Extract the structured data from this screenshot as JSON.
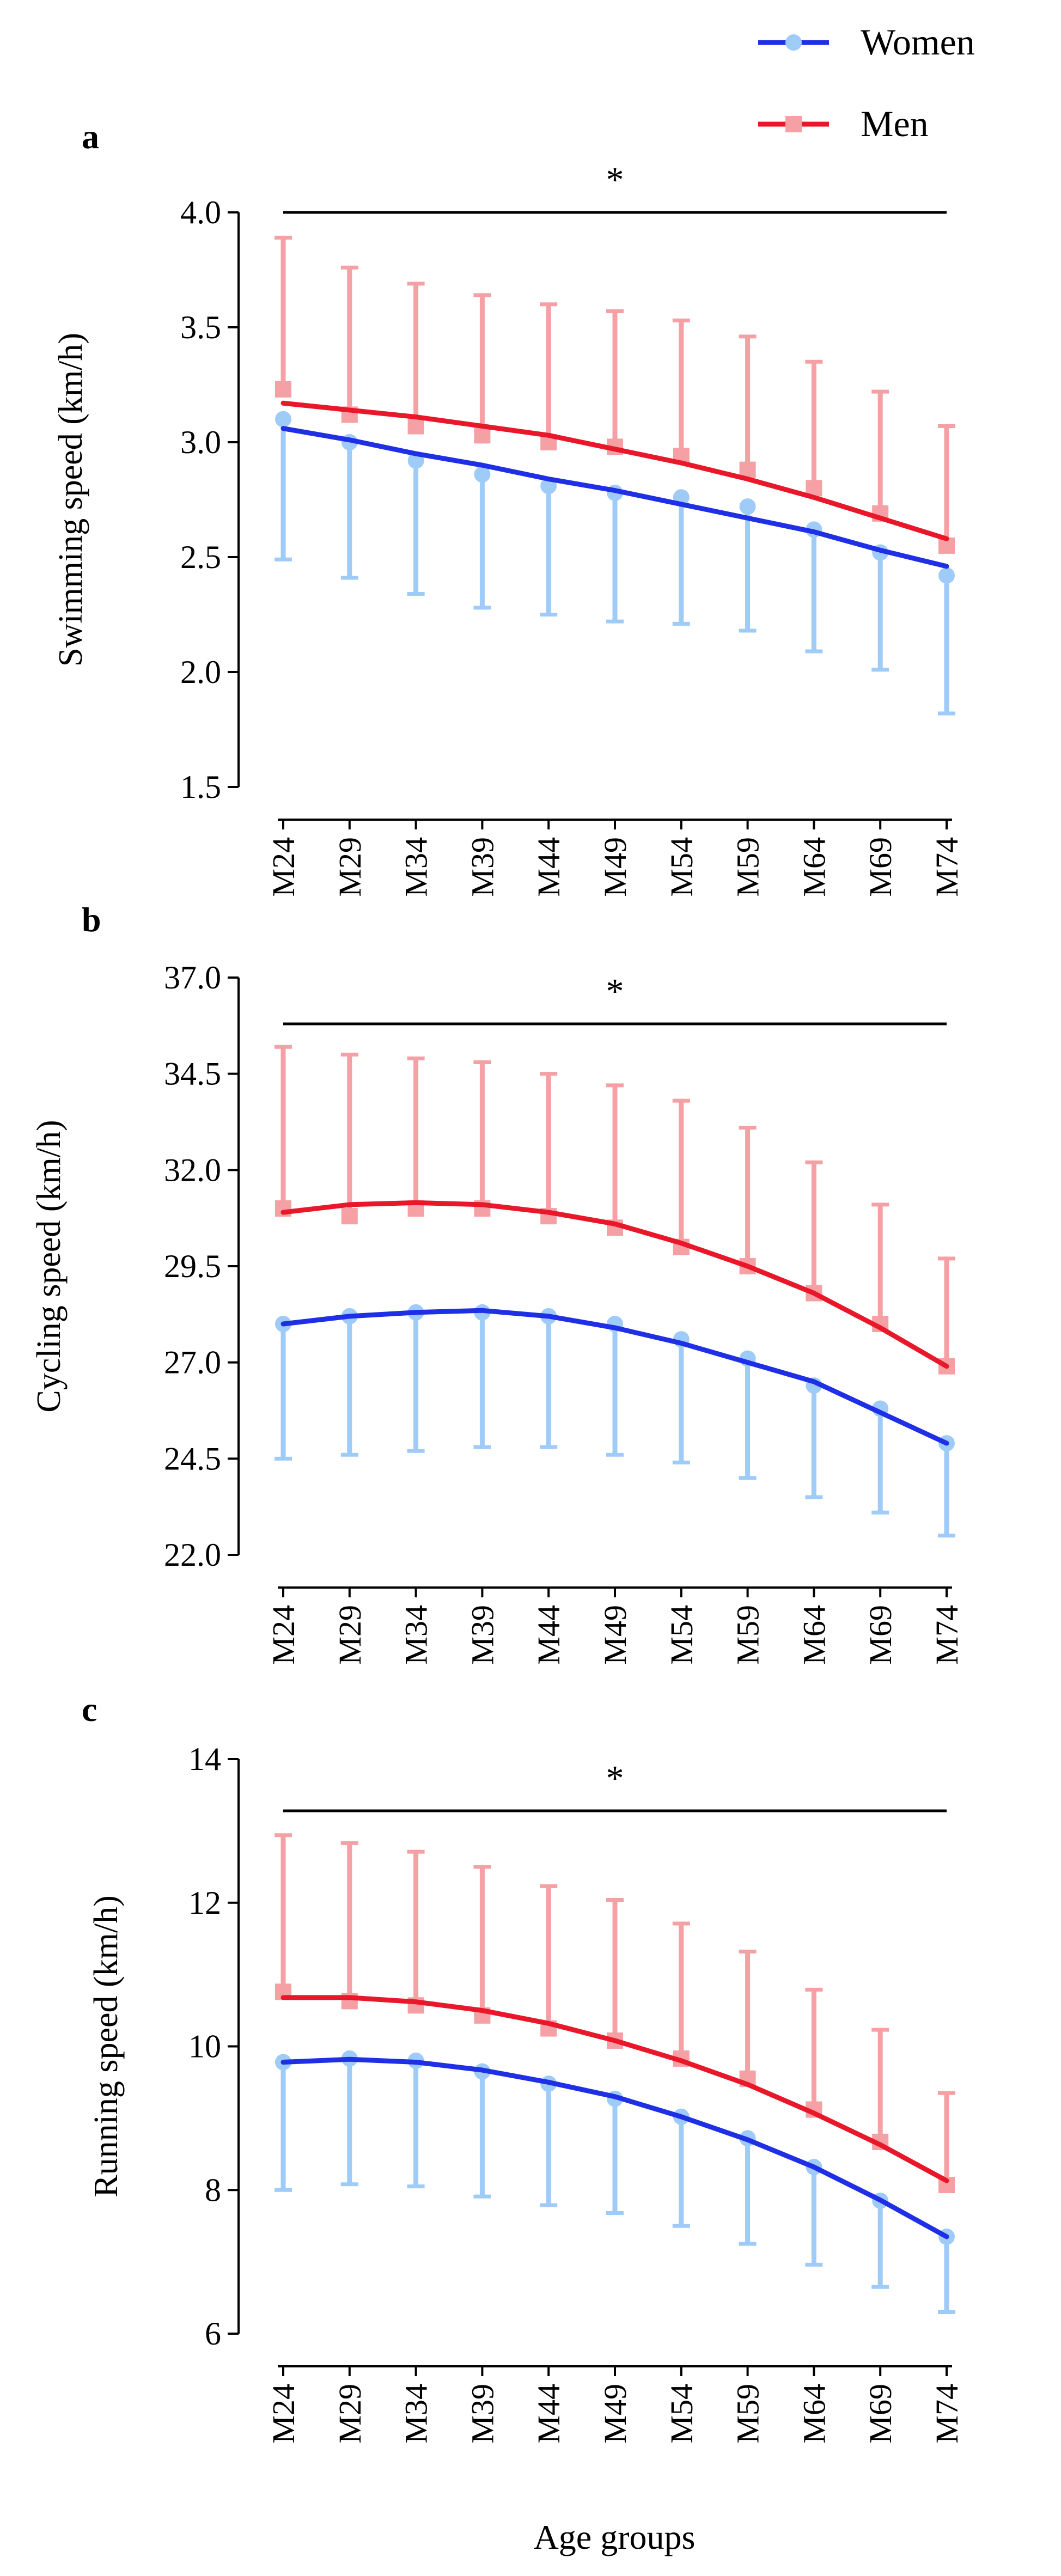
{
  "figure": {
    "xlabel": "Age groups",
    "legend": {
      "placement": "top-right",
      "entries": [
        {
          "label": "Women",
          "marker": "circle",
          "series": "women"
        },
        {
          "label": "Men",
          "marker": "square",
          "series": "men"
        }
      ]
    },
    "colors": {
      "women_line": "#1f2fe6",
      "women_marker": "#9ecbf7",
      "men_line": "#e8182a",
      "men_marker": "#f4a0a4",
      "axis": "#000000"
    }
  },
  "chart_data": [
    {
      "panel": "a",
      "type": "line",
      "title": "",
      "ylabel": "Swimming speed (km/h)",
      "xlabel": "",
      "categories": [
        "M24",
        "M29",
        "M34",
        "M39",
        "M44",
        "M49",
        "M54",
        "M59",
        "M64",
        "M69",
        "M74"
      ],
      "ylim": [
        1.5,
        4.0
      ],
      "yticks": [
        1.5,
        2.0,
        2.5,
        3.0,
        3.5,
        4.0
      ],
      "ytick_labels": [
        "1.5",
        "2.0",
        "2.5",
        "3.0",
        "3.5",
        "4.0"
      ],
      "significance": {
        "symbol": "*",
        "y": 4.0,
        "from": "M24",
        "to": "M74"
      },
      "series": [
        {
          "name": "Women",
          "means": [
            3.1,
            3.0,
            2.92,
            2.86,
            2.81,
            2.78,
            2.76,
            2.72,
            2.62,
            2.52,
            2.42
          ],
          "error_lower": [
            2.49,
            2.41,
            2.34,
            2.28,
            2.25,
            2.22,
            2.21,
            2.18,
            2.09,
            2.01,
            1.82
          ],
          "error_upper": [
            3.1,
            3.0,
            2.92,
            2.86,
            2.81,
            2.78,
            2.76,
            2.72,
            2.62,
            2.52,
            2.42
          ],
          "trend": [
            3.06,
            3.01,
            2.95,
            2.9,
            2.84,
            2.79,
            2.73,
            2.67,
            2.61,
            2.53,
            2.46
          ]
        },
        {
          "name": "Men",
          "means": [
            3.23,
            3.12,
            3.07,
            3.03,
            3.0,
            2.98,
            2.94,
            2.88,
            2.8,
            2.69,
            2.55
          ],
          "error_lower": [
            3.23,
            3.12,
            3.07,
            3.03,
            3.0,
            2.98,
            2.94,
            2.88,
            2.8,
            2.69,
            2.55
          ],
          "error_upper": [
            3.89,
            3.76,
            3.69,
            3.64,
            3.6,
            3.57,
            3.53,
            3.46,
            3.35,
            3.22,
            3.07
          ],
          "trend": [
            3.17,
            3.14,
            3.11,
            3.07,
            3.03,
            2.97,
            2.91,
            2.84,
            2.76,
            2.67,
            2.58
          ]
        }
      ]
    },
    {
      "panel": "b",
      "type": "line",
      "title": "",
      "ylabel": "Cycling speed (km/h)",
      "xlabel": "",
      "categories": [
        "M24",
        "M29",
        "M34",
        "M39",
        "M44",
        "M49",
        "M54",
        "M59",
        "M64",
        "M69",
        "M74"
      ],
      "ylim": [
        22.0,
        37.0
      ],
      "yticks": [
        22.0,
        24.5,
        27.0,
        29.5,
        32.0,
        34.5,
        37.0
      ],
      "ytick_labels": [
        "22.0",
        "24.5",
        "27.0",
        "29.5",
        "32.0",
        "34.5",
        "37.0"
      ],
      "significance": {
        "symbol": "*",
        "y": 35.8,
        "from": "M24",
        "to": "M74"
      },
      "series": [
        {
          "name": "Women",
          "means": [
            28.0,
            28.2,
            28.3,
            28.3,
            28.2,
            28.0,
            27.6,
            27.1,
            26.4,
            25.8,
            24.9
          ],
          "error_lower": [
            24.5,
            24.6,
            24.7,
            24.8,
            24.8,
            24.6,
            24.4,
            24.0,
            23.5,
            23.1,
            22.5
          ],
          "error_upper": [
            28.0,
            28.2,
            28.3,
            28.3,
            28.2,
            28.0,
            27.6,
            27.1,
            26.4,
            25.8,
            24.9
          ],
          "trend": [
            28.0,
            28.2,
            28.3,
            28.35,
            28.2,
            27.9,
            27.5,
            27.0,
            26.5,
            25.7,
            24.9
          ]
        },
        {
          "name": "Men",
          "means": [
            31.0,
            30.8,
            31.0,
            31.0,
            30.8,
            30.5,
            30.0,
            29.5,
            28.8,
            28.0,
            26.9
          ],
          "error_lower": [
            31.0,
            30.8,
            31.0,
            31.0,
            30.8,
            30.5,
            30.0,
            29.5,
            28.8,
            28.0,
            26.9
          ],
          "error_upper": [
            35.2,
            35.0,
            34.9,
            34.8,
            34.5,
            34.2,
            33.8,
            33.1,
            32.2,
            31.1,
            29.7
          ],
          "trend": [
            30.9,
            31.1,
            31.15,
            31.1,
            30.9,
            30.6,
            30.1,
            29.5,
            28.8,
            27.9,
            26.9
          ]
        }
      ]
    },
    {
      "panel": "c",
      "type": "line",
      "title": "",
      "ylabel": "Running speed (km/h)",
      "xlabel": "Age groups",
      "categories": [
        "M24",
        "M29",
        "M34",
        "M39",
        "M44",
        "M49",
        "M54",
        "M59",
        "M64",
        "M69",
        "M74"
      ],
      "ylim": [
        6,
        14
      ],
      "yticks": [
        6,
        8,
        10,
        12,
        14
      ],
      "ytick_labels": [
        "6",
        "8",
        "10",
        "12",
        "14"
      ],
      "significance": {
        "symbol": "*",
        "y": 13.25,
        "from": "M24",
        "to": "M74"
      },
      "series": [
        {
          "name": "Women",
          "means": [
            9.78,
            9.83,
            9.8,
            9.65,
            9.48,
            9.27,
            9.02,
            8.72,
            8.32,
            7.85,
            7.35
          ],
          "error_lower": [
            8.0,
            8.08,
            8.05,
            7.91,
            7.79,
            7.68,
            7.5,
            7.25,
            6.96,
            6.65,
            6.3
          ],
          "error_upper": [
            9.78,
            9.83,
            9.8,
            9.65,
            9.48,
            9.27,
            9.02,
            8.72,
            8.32,
            7.85,
            7.35
          ],
          "trend": [
            9.78,
            9.82,
            9.78,
            9.67,
            9.5,
            9.3,
            9.02,
            8.7,
            8.32,
            7.86,
            7.35
          ]
        },
        {
          "name": "Men",
          "means": [
            10.76,
            10.63,
            10.57,
            10.43,
            10.25,
            10.08,
            9.83,
            9.55,
            9.12,
            8.67,
            8.07
          ],
          "error_lower": [
            10.76,
            10.63,
            10.57,
            10.43,
            10.25,
            10.08,
            9.83,
            9.55,
            9.12,
            8.67,
            8.07
          ],
          "error_upper": [
            12.94,
            12.83,
            12.71,
            12.5,
            12.23,
            12.04,
            11.71,
            11.32,
            10.79,
            10.23,
            9.35
          ],
          "trend": [
            10.68,
            10.68,
            10.62,
            10.5,
            10.32,
            10.08,
            9.8,
            9.47,
            9.07,
            8.63,
            8.13
          ]
        }
      ]
    }
  ]
}
